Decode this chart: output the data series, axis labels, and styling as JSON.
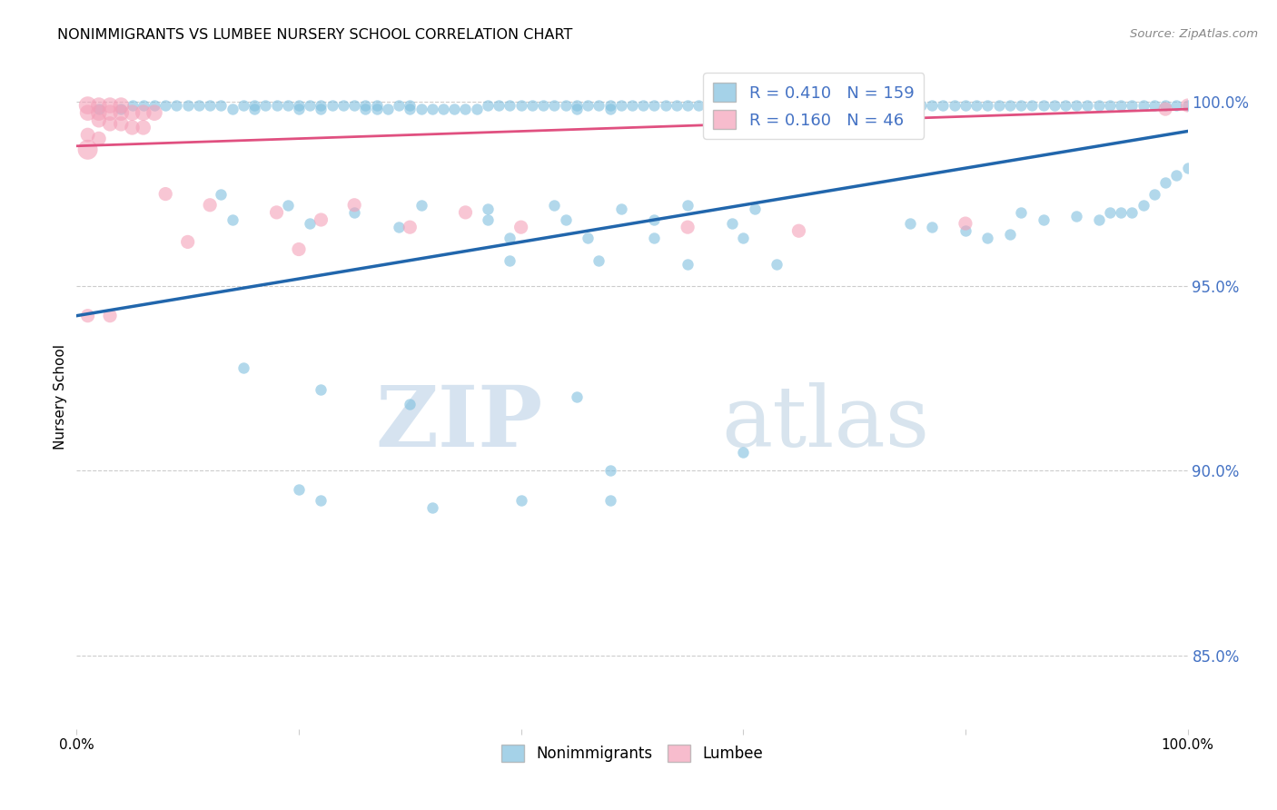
{
  "title": "NONIMMIGRANTS VS LUMBEE NURSERY SCHOOL CORRELATION CHART",
  "source": "Source: ZipAtlas.com",
  "ylabel": "Nursery School",
  "legend_label1": "Nonimmigrants",
  "legend_label2": "Lumbee",
  "R1": 0.41,
  "N1": 159,
  "R2": 0.16,
  "N2": 46,
  "ytick_labels": [
    "85.0%",
    "90.0%",
    "95.0%",
    "100.0%"
  ],
  "ytick_values": [
    0.85,
    0.9,
    0.95,
    1.0
  ],
  "color_blue": "#7fbfdf",
  "color_pink": "#f4a0b8",
  "color_blue_dark": "#2166ac",
  "color_pink_dark": "#e05080",
  "color_text_blue": "#4472c4",
  "background_color": "#ffffff",
  "watermark_text": "ZIPatlas",
  "blue_points_x": [
    0.02,
    0.04,
    0.05,
    0.06,
    0.07,
    0.08,
    0.09,
    0.1,
    0.11,
    0.12,
    0.13,
    0.14,
    0.15,
    0.16,
    0.16,
    0.17,
    0.18,
    0.19,
    0.2,
    0.2,
    0.21,
    0.22,
    0.22,
    0.23,
    0.24,
    0.25,
    0.26,
    0.26,
    0.27,
    0.27,
    0.28,
    0.29,
    0.3,
    0.3,
    0.31,
    0.32,
    0.33,
    0.34,
    0.35,
    0.36,
    0.37,
    0.38,
    0.39,
    0.4,
    0.41,
    0.42,
    0.43,
    0.44,
    0.45,
    0.45,
    0.46,
    0.47,
    0.48,
    0.48,
    0.49,
    0.5,
    0.51,
    0.52,
    0.53,
    0.54,
    0.55,
    0.56,
    0.57,
    0.58,
    0.59,
    0.6,
    0.61,
    0.62,
    0.63,
    0.64,
    0.65,
    0.65,
    0.66,
    0.67,
    0.68,
    0.69,
    0.7,
    0.71,
    0.72,
    0.73,
    0.74,
    0.75,
    0.76,
    0.77,
    0.78,
    0.79,
    0.8,
    0.81,
    0.82,
    0.83,
    0.84,
    0.85,
    0.86,
    0.87,
    0.88,
    0.89,
    0.9,
    0.91,
    0.92,
    0.93,
    0.94,
    0.95,
    0.96,
    0.97,
    0.98,
    0.99,
    1.0,
    0.13,
    0.19,
    0.25,
    0.31,
    0.37,
    0.43,
    0.49,
    0.55,
    0.61,
    0.14,
    0.21,
    0.29,
    0.37,
    0.44,
    0.52,
    0.59,
    0.39,
    0.46,
    0.52,
    0.6,
    0.39,
    0.47,
    0.55,
    0.63,
    0.15,
    0.22,
    0.3,
    0.45,
    0.2,
    0.22,
    0.32,
    0.4,
    0.48,
    0.48,
    0.6,
    0.85,
    0.87,
    0.9,
    0.92,
    0.93,
    0.94,
    0.95,
    0.96,
    0.97,
    0.98,
    0.99,
    1.0,
    0.8,
    0.82,
    0.84,
    0.75,
    0.77
  ],
  "blue_points_y": [
    0.998,
    0.998,
    0.999,
    0.999,
    0.999,
    0.999,
    0.999,
    0.999,
    0.999,
    0.999,
    0.999,
    0.998,
    0.999,
    0.999,
    0.998,
    0.999,
    0.999,
    0.999,
    0.999,
    0.998,
    0.999,
    0.999,
    0.998,
    0.999,
    0.999,
    0.999,
    0.999,
    0.998,
    0.999,
    0.998,
    0.998,
    0.999,
    0.999,
    0.998,
    0.998,
    0.998,
    0.998,
    0.998,
    0.998,
    0.998,
    0.999,
    0.999,
    0.999,
    0.999,
    0.999,
    0.999,
    0.999,
    0.999,
    0.999,
    0.998,
    0.999,
    0.999,
    0.999,
    0.998,
    0.999,
    0.999,
    0.999,
    0.999,
    0.999,
    0.999,
    0.999,
    0.999,
    0.998,
    0.998,
    0.999,
    0.999,
    0.999,
    0.999,
    0.999,
    0.999,
    0.999,
    0.998,
    0.999,
    0.999,
    0.999,
    0.999,
    0.999,
    0.999,
    0.999,
    0.999,
    0.999,
    0.999,
    0.999,
    0.999,
    0.999,
    0.999,
    0.999,
    0.999,
    0.999,
    0.999,
    0.999,
    0.999,
    0.999,
    0.999,
    0.999,
    0.999,
    0.999,
    0.999,
    0.999,
    0.999,
    0.999,
    0.999,
    0.999,
    0.999,
    0.999,
    0.999,
    0.999,
    0.975,
    0.972,
    0.97,
    0.972,
    0.971,
    0.972,
    0.971,
    0.972,
    0.971,
    0.968,
    0.967,
    0.966,
    0.968,
    0.968,
    0.968,
    0.967,
    0.963,
    0.963,
    0.963,
    0.963,
    0.957,
    0.957,
    0.956,
    0.956,
    0.928,
    0.922,
    0.918,
    0.92,
    0.895,
    0.892,
    0.89,
    0.892,
    0.9,
    0.892,
    0.905,
    0.97,
    0.968,
    0.969,
    0.968,
    0.97,
    0.97,
    0.97,
    0.972,
    0.975,
    0.978,
    0.98,
    0.982,
    0.965,
    0.963,
    0.964,
    0.967,
    0.966
  ],
  "pink_points_x": [
    0.01,
    0.02,
    0.03,
    0.04,
    0.01,
    0.02,
    0.03,
    0.04,
    0.05,
    0.06,
    0.07,
    0.02,
    0.03,
    0.04,
    0.05,
    0.06,
    0.01,
    0.02,
    0.01,
    0.08,
    0.12,
    0.18,
    0.22,
    0.3,
    0.4,
    0.55,
    0.65,
    0.8,
    1.0,
    0.98,
    0.1,
    0.2,
    0.01,
    0.03,
    0.25,
    0.35
  ],
  "pink_points_y": [
    0.999,
    0.999,
    0.999,
    0.999,
    0.997,
    0.997,
    0.997,
    0.997,
    0.997,
    0.997,
    0.997,
    0.995,
    0.994,
    0.994,
    0.993,
    0.993,
    0.991,
    0.99,
    0.987,
    0.975,
    0.972,
    0.97,
    0.968,
    0.966,
    0.966,
    0.966,
    0.965,
    0.967,
    0.999,
    0.998,
    0.962,
    0.96,
    0.942,
    0.942,
    0.972,
    0.97
  ],
  "pink_sizes": [
    200,
    160,
    160,
    160,
    160,
    160,
    160,
    160,
    160,
    160,
    160,
    140,
    140,
    140,
    140,
    140,
    130,
    130,
    250,
    120,
    120,
    120,
    120,
    120,
    120,
    120,
    120,
    120,
    120,
    120,
    120,
    120,
    120,
    120,
    120,
    120
  ],
  "xlim": [
    0.0,
    1.0
  ],
  "ylim": [
    0.83,
    1.01
  ],
  "blue_line_x": [
    0.0,
    1.0
  ],
  "blue_line_y": [
    0.942,
    0.992
  ],
  "pink_line_x": [
    0.0,
    1.0
  ],
  "pink_line_y": [
    0.988,
    0.998
  ]
}
